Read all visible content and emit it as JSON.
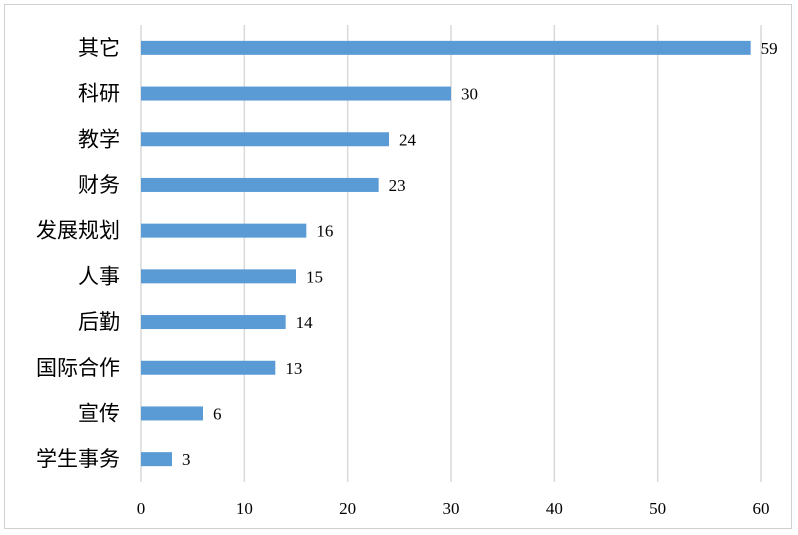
{
  "chart_data": {
    "type": "bar",
    "orientation": "horizontal",
    "categories": [
      "其它",
      "科研",
      "教学",
      "财务",
      "发展规划",
      "人事",
      "后勤",
      "国际合作",
      "宣传",
      "学生事务"
    ],
    "values": [
      59,
      30,
      24,
      23,
      16,
      15,
      14,
      13,
      6,
      3
    ],
    "xlim": [
      0,
      60
    ],
    "xticks": [
      0,
      10,
      20,
      30,
      40,
      50,
      60
    ],
    "grid": "vertical",
    "data_labels": true,
    "legend": "none",
    "colors": {
      "bar": "#5b9bd5",
      "grid": "#d9d9d9",
      "frame": "#d0d0d0"
    }
  }
}
